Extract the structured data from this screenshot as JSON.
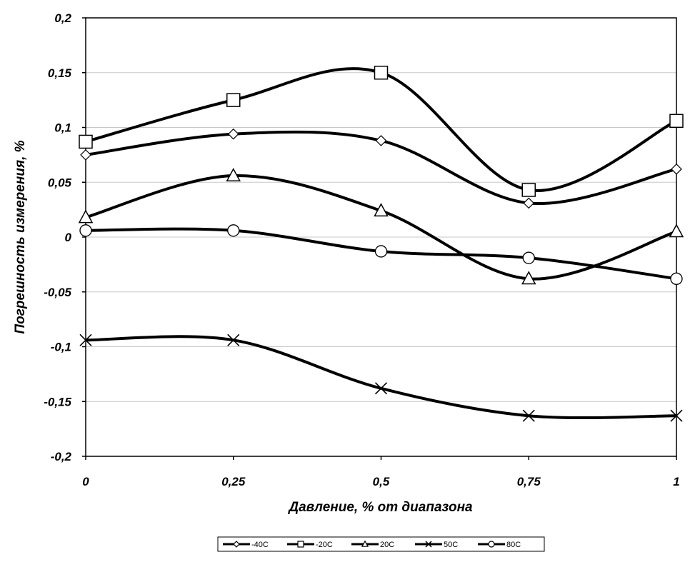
{
  "chart_data": {
    "type": "line",
    "title": "",
    "xlabel": "Давление, % от диапазона",
    "ylabel": "Погрешность измерения, %",
    "xlim": [
      0,
      1
    ],
    "ylim": [
      -0.2,
      0.2
    ],
    "x": [
      0,
      0.25,
      0.5,
      0.75,
      1
    ],
    "x_tick_labels": [
      "0",
      "0,25",
      "0,5",
      "0,75",
      "1"
    ],
    "y_ticks": [
      0.2,
      0.15,
      0.1,
      0.05,
      0,
      -0.05,
      -0.1,
      -0.15,
      -0.2
    ],
    "y_tick_labels": [
      "0,2",
      "0,15",
      "0,1",
      "0,05",
      "0",
      "-0,05",
      "-0,1",
      "-0,15",
      "-0,2"
    ],
    "grid": "horizontal",
    "legend_position": "bottom",
    "line_color": "#000000",
    "series": [
      {
        "name": "-40C",
        "marker": "diamond",
        "values": [
          0.075,
          0.094,
          0.088,
          0.031,
          0.062
        ]
      },
      {
        "name": "-20C",
        "marker": "square",
        "values": [
          0.087,
          0.125,
          0.15,
          0.043,
          0.106
        ]
      },
      {
        "name": "20C",
        "marker": "triangle",
        "values": [
          0.018,
          0.056,
          0.024,
          -0.038,
          0.005
        ]
      },
      {
        "name": "50C",
        "marker": "x",
        "values": [
          -0.094,
          -0.094,
          -0.138,
          -0.163,
          -0.163
        ]
      },
      {
        "name": "80C",
        "marker": "circle",
        "values": [
          0.006,
          0.006,
          -0.013,
          -0.019,
          -0.038
        ]
      }
    ]
  }
}
